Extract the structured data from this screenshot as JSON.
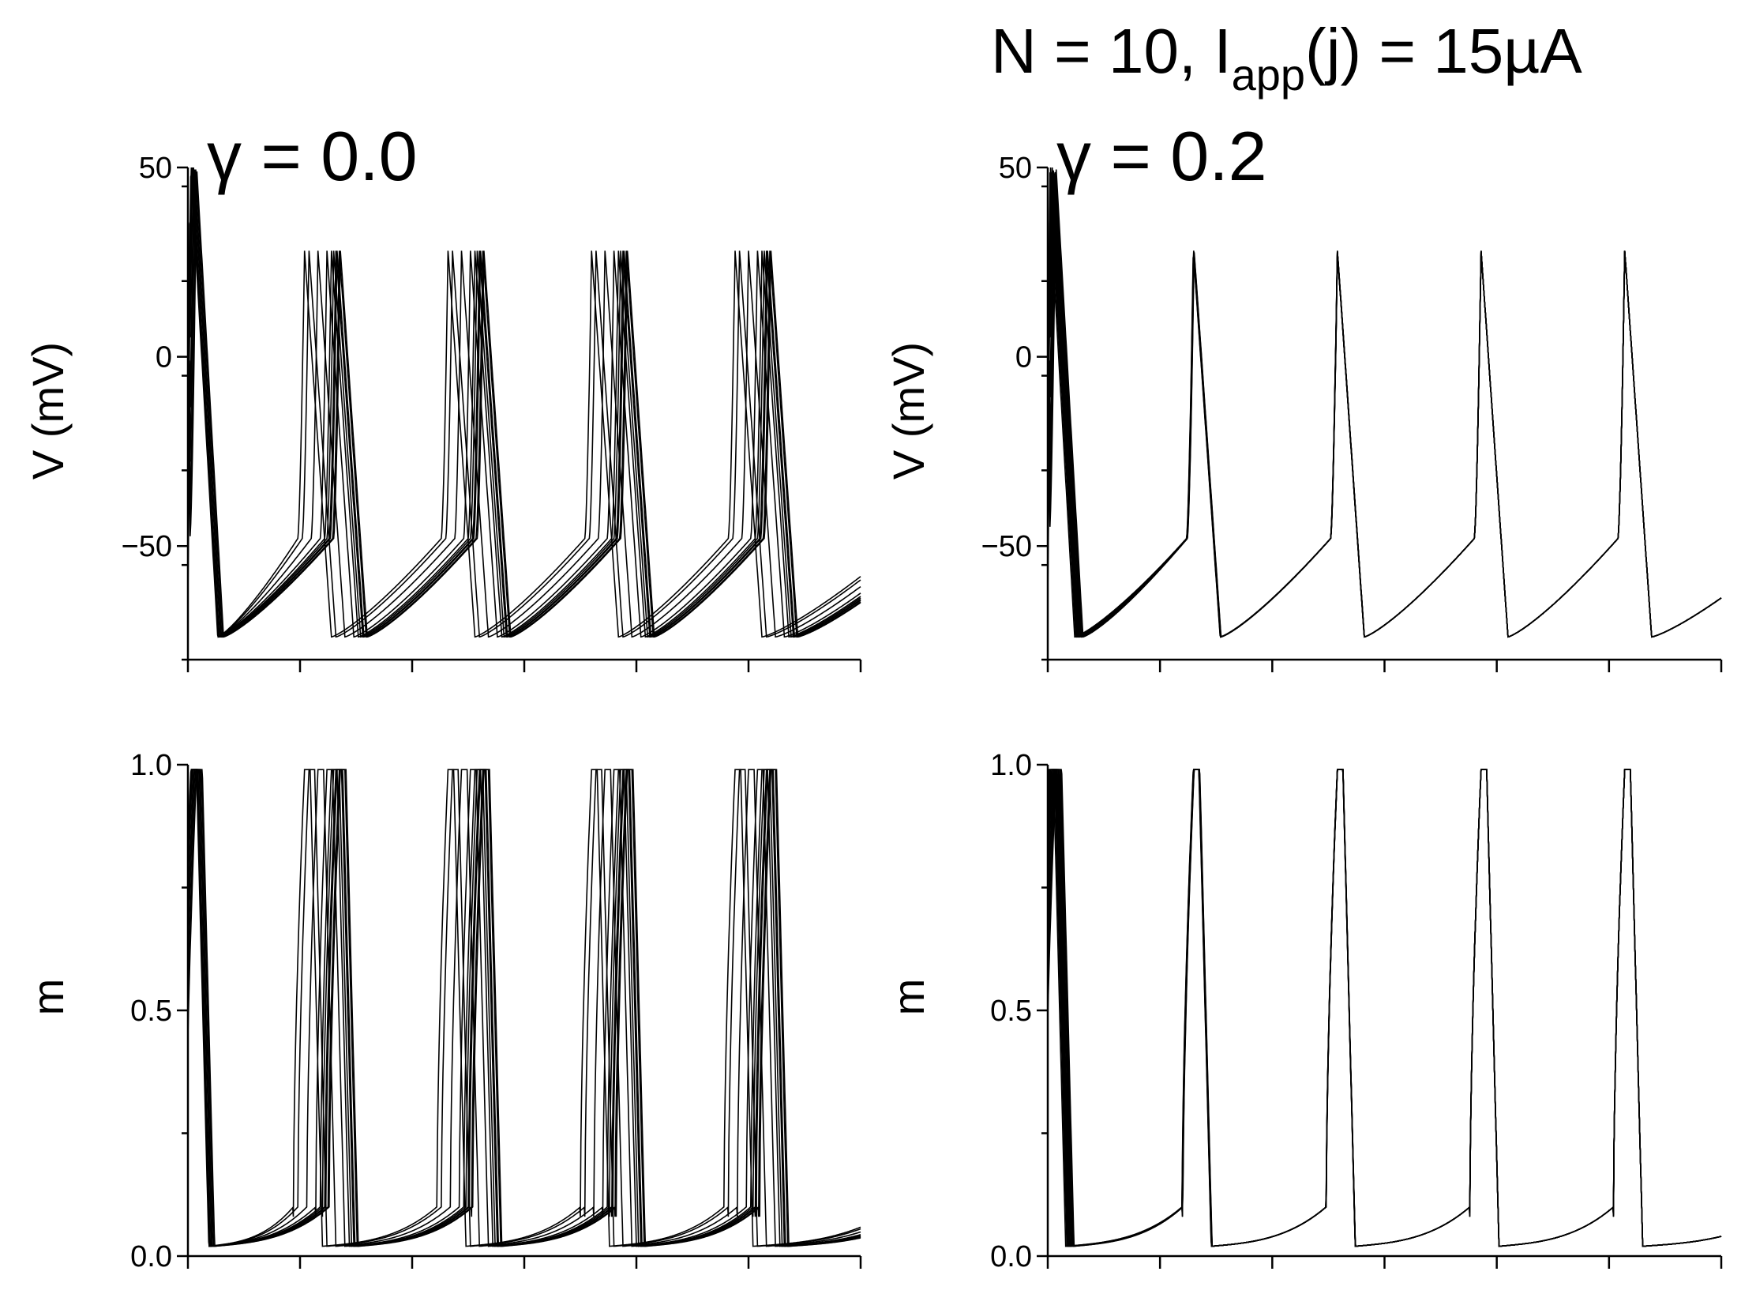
{
  "figure": {
    "title_parts": {
      "pre": "N = 10, I",
      "sub": "app",
      "post": "(j) = 15µA"
    }
  },
  "chart_data": [
    {
      "id": "v-left",
      "type": "line",
      "panel_label": "γ = 0.0",
      "ylabel": "V (mV)",
      "xlabel": "",
      "ylim": [
        -80,
        50
      ],
      "yticks": [
        50,
        0,
        -50
      ],
      "ytick_labels": [
        "50",
        "0",
        "−50"
      ],
      "xlim": [
        0,
        6
      ],
      "xticks": [
        0,
        1,
        2,
        3,
        4,
        5,
        6
      ],
      "variable": "V",
      "gamma": 0.0,
      "n_traces": 10,
      "series_summary": {
        "peak_mV": 28,
        "first_peak_mV": 50,
        "rest_mV": -74,
        "spike_times_first_cycle": [
          0.0,
          1.05,
          1.22,
          1.3,
          1.33
        ],
        "spike_period": 1.28
      }
    },
    {
      "id": "v-right",
      "type": "line",
      "panel_label": "γ = 0.2",
      "ylabel": "V (mV)",
      "xlabel": "",
      "ylim": [
        -80,
        50
      ],
      "yticks": [
        50,
        0,
        -50
      ],
      "ytick_labels": [
        "50",
        "0",
        "−50"
      ],
      "xlim": [
        0,
        6
      ],
      "xticks": [
        0,
        1,
        2,
        3,
        4,
        5,
        6
      ],
      "variable": "V",
      "gamma": 0.2,
      "n_traces": 10,
      "series_summary": {
        "peak_mV": 28,
        "first_peak_mV": 50,
        "rest_mV": -74,
        "spike_times": [
          0.0,
          1.25,
          2.5,
          3.8,
          5.1
        ],
        "converged": true
      }
    },
    {
      "id": "m-left",
      "type": "line",
      "panel_label": "",
      "ylabel": "m",
      "xlabel": "",
      "ylim": [
        0.0,
        1.0
      ],
      "yticks": [
        1.0,
        0.5,
        0.0
      ],
      "ytick_labels": [
        "1.0",
        "0.5",
        "0.0"
      ],
      "xlim": [
        0,
        6
      ],
      "xticks": [
        0,
        1,
        2,
        3,
        4,
        5,
        6
      ],
      "variable": "m",
      "gamma": 0.0,
      "n_traces": 10,
      "series_summary": {
        "peak": 0.99,
        "min": 0.02
      }
    },
    {
      "id": "m-right",
      "type": "line",
      "panel_label": "",
      "ylabel": "m",
      "xlabel": "",
      "ylim": [
        0.0,
        1.0
      ],
      "yticks": [
        1.0,
        0.5,
        0.0
      ],
      "ytick_labels": [
        "1.0",
        "0.5",
        "0.0"
      ],
      "xlim": [
        0,
        6
      ],
      "xticks": [
        0,
        1,
        2,
        3,
        4,
        5,
        6
      ],
      "variable": "m",
      "gamma": 0.2,
      "n_traces": 10,
      "series_summary": {
        "peak": 0.99,
        "min": 0.02
      }
    }
  ]
}
